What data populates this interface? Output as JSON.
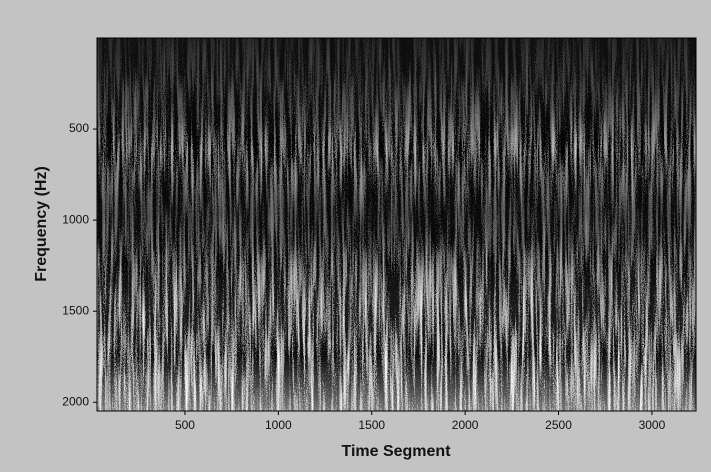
{
  "chart_data": {
    "type": "spectrogram",
    "xlabel": "Time Segment",
    "ylabel": "Frequency (Hz)",
    "xlim": [
      29,
      3236
    ],
    "xticks": [
      500,
      1000,
      1500,
      2000,
      2500,
      3000
    ],
    "ylim": [
      0,
      2048
    ],
    "yticks": [
      500,
      1000,
      1500,
      2000
    ],
    "y_inverted": true,
    "background": "#c3c3c3"
  }
}
